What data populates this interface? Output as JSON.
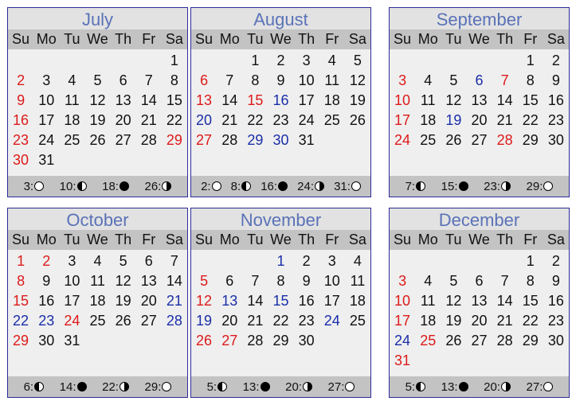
{
  "weekdays": [
    "Su",
    "Mo",
    "Tu",
    "We",
    "Th",
    "Fr",
    "Sa"
  ],
  "months": [
    {
      "name": "July",
      "start": 6,
      "days": 31,
      "red": [
        2,
        9,
        16,
        23,
        29,
        30
      ],
      "blue": [],
      "phases": [
        {
          "day": "3",
          "phase": "full"
        },
        {
          "day": "10",
          "phase": "last"
        },
        {
          "day": "18",
          "phase": "new"
        },
        {
          "day": "26",
          "phase": "first"
        }
      ]
    },
    {
      "name": "August",
      "start": 2,
      "days": 31,
      "red": [
        6,
        13,
        15,
        27
      ],
      "blue": [
        16,
        20,
        29,
        30
      ],
      "phases": [
        {
          "day": "2",
          "phase": "full"
        },
        {
          "day": "8",
          "phase": "last"
        },
        {
          "day": "16",
          "phase": "new"
        },
        {
          "day": "24",
          "phase": "first"
        },
        {
          "day": "31",
          "phase": "full"
        }
      ]
    },
    {
      "name": "September",
      "start": 5,
      "days": 30,
      "red": [
        3,
        7,
        10,
        17,
        24,
        28
      ],
      "blue": [
        6,
        19
      ],
      "phases": [
        {
          "day": "7",
          "phase": "last"
        },
        {
          "day": "15",
          "phase": "new"
        },
        {
          "day": "23",
          "phase": "first"
        },
        {
          "day": "29",
          "phase": "full"
        }
      ]
    },
    {
      "name": "October",
      "start": 0,
      "days": 31,
      "red": [
        1,
        2,
        8,
        15,
        24,
        29
      ],
      "blue": [
        21,
        22,
        23,
        28
      ],
      "phases": [
        {
          "day": "6",
          "phase": "last"
        },
        {
          "day": "14",
          "phase": "new"
        },
        {
          "day": "22",
          "phase": "first"
        },
        {
          "day": "29",
          "phase": "full"
        }
      ]
    },
    {
      "name": "November",
      "start": 3,
      "days": 30,
      "red": [
        5,
        12,
        26,
        27
      ],
      "blue": [
        1,
        13,
        15,
        19,
        24
      ],
      "phases": [
        {
          "day": "5",
          "phase": "last"
        },
        {
          "day": "13",
          "phase": "new"
        },
        {
          "day": "20",
          "phase": "first"
        },
        {
          "day": "27",
          "phase": "full"
        }
      ]
    },
    {
      "name": "December",
      "start": 5,
      "days": 31,
      "red": [
        3,
        10,
        17,
        25,
        31
      ],
      "blue": [
        24
      ],
      "phases": [
        {
          "day": "5",
          "phase": "last"
        },
        {
          "day": "13",
          "phase": "new"
        },
        {
          "day": "20",
          "phase": "first"
        },
        {
          "day": "27",
          "phase": "full"
        }
      ]
    }
  ]
}
